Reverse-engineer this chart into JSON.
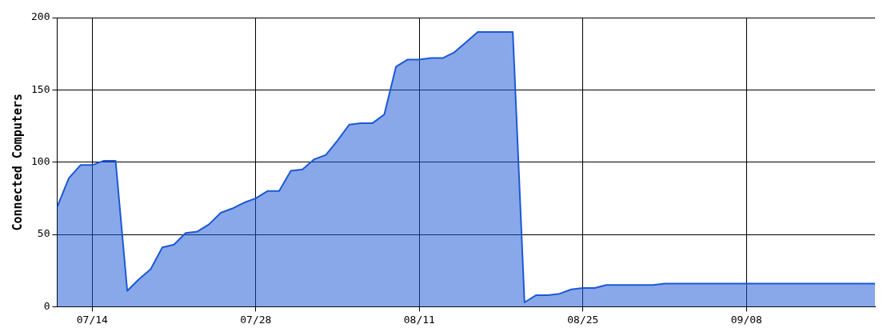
{
  "chart_data": {
    "type": "area",
    "ylabel": "Connected Computers",
    "x": [
      "--07-11",
      "--07-12",
      "--07-13",
      "--07-14",
      "--07-15",
      "--07-16",
      "--07-17",
      "--07-18",
      "--07-19",
      "--07-20",
      "--07-21",
      "--07-22",
      "--07-23",
      "--07-24",
      "--07-25",
      "--07-26",
      "--07-27",
      "--07-28",
      "--07-29",
      "--07-30",
      "--07-31",
      "--08-01",
      "--08-02",
      "--08-03",
      "--08-04",
      "--08-05",
      "--08-06",
      "--08-07",
      "--08-08",
      "--08-09",
      "--08-10",
      "--08-11",
      "--08-12",
      "--08-13",
      "--08-14",
      "--08-15",
      "--08-16",
      "--08-17",
      "--08-18",
      "--08-19",
      "--08-20",
      "--08-21",
      "--08-22",
      "--08-23",
      "--08-24",
      "--08-25",
      "--08-26",
      "--08-27",
      "--08-28",
      "--08-29",
      "--08-30",
      "--08-31",
      "--09-01",
      "--09-02",
      "--09-03",
      "--09-04",
      "--09-05",
      "--09-06",
      "--09-07",
      "--09-08",
      "--09-09",
      "--09-10",
      "--09-11",
      "--09-12",
      "--09-13",
      "--09-14",
      "--09-15",
      "--09-16",
      "--09-17",
      "--09-18",
      "--09-19"
    ],
    "series": [
      {
        "color": "#1c58d4",
        "values": [
          69,
          89,
          98,
          98,
          101,
          101,
          11,
          19,
          26,
          41,
          43,
          51,
          52,
          57,
          65,
          68,
          72,
          75,
          80,
          80,
          94,
          95,
          102,
          105,
          115,
          126,
          127,
          127,
          133,
          166,
          171,
          171,
          172,
          172,
          176,
          183,
          190,
          190,
          190,
          190,
          3,
          8,
          8,
          9,
          12,
          13,
          13,
          15,
          15,
          15,
          15,
          15,
          16,
          16,
          16,
          16,
          16,
          16,
          16,
          16,
          16,
          16,
          16,
          16,
          16,
          16,
          16,
          16,
          16,
          16,
          16
        ]
      }
    ],
    "xlim": [
      "--07-11",
      "--09-19"
    ],
    "xticks": [
      {
        "value": "--07-14",
        "label": "07/14"
      },
      {
        "value": "--07-28",
        "label": "07/28"
      },
      {
        "value": "--08-11",
        "label": "08/11"
      },
      {
        "value": "--08-25",
        "label": "08/25"
      },
      {
        "value": "--09-08",
        "label": "09/08"
      }
    ],
    "ylim": [
      0,
      200
    ],
    "yticks": [
      0,
      50,
      100,
      150,
      200
    ],
    "grid": true,
    "legend": false
  }
}
